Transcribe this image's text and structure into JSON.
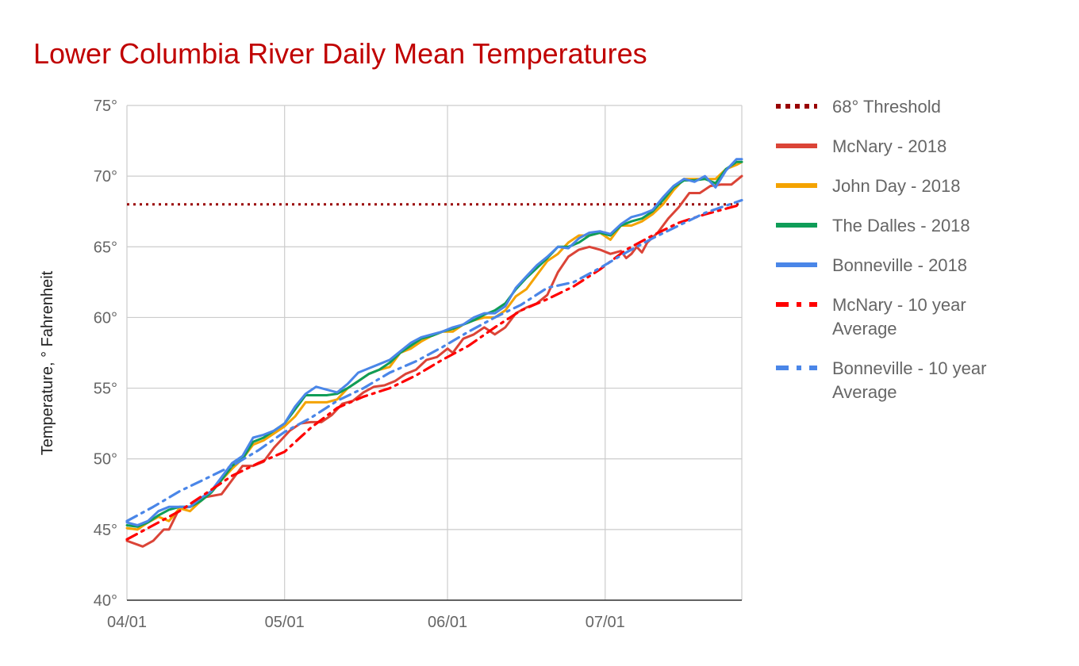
{
  "chart_data": {
    "type": "line",
    "title": "Lower Columbia River Daily Mean Temperatures",
    "title_color": "#c00000",
    "ylabel": "Temperature, ° Fahrenheit",
    "xlabel": "",
    "ylim": [
      40,
      75
    ],
    "xlim": [
      0,
      117
    ],
    "grid": true,
    "legend_position": "right",
    "y_ticks": [
      {
        "value": 40,
        "label": "40°"
      },
      {
        "value": 45,
        "label": "45°"
      },
      {
        "value": 50,
        "label": "50°"
      },
      {
        "value": 55,
        "label": "55°"
      },
      {
        "value": 60,
        "label": "60°"
      },
      {
        "value": 65,
        "label": "65°"
      },
      {
        "value": 70,
        "label": "70°"
      },
      {
        "value": 75,
        "label": "75°"
      }
    ],
    "x_ticks": [
      {
        "value": 0,
        "label": "04/01"
      },
      {
        "value": 30,
        "label": "05/01"
      },
      {
        "value": 61,
        "label": "06/01"
      },
      {
        "value": 91,
        "label": "07/01"
      }
    ],
    "threshold": {
      "name": "68° Threshold",
      "value": 68,
      "color": "#990000"
    },
    "series": [
      {
        "name": "McNary - 2018",
        "color": "#db4437",
        "style": "solid",
        "x": [
          0,
          3,
          5,
          7,
          8,
          10,
          12,
          15,
          18,
          20,
          22,
          24,
          26,
          28,
          31,
          33,
          35,
          37,
          39,
          41,
          43,
          45,
          47,
          49,
          51,
          53,
          55,
          57,
          59,
          61,
          62,
          64,
          66,
          68,
          70,
          72,
          74,
          76,
          78,
          80,
          82,
          84,
          86,
          88,
          90,
          92,
          94,
          95,
          96,
          97,
          98,
          99,
          101,
          103,
          105,
          107,
          109,
          111,
          113,
          115,
          117
        ],
        "values": [
          44.2,
          43.8,
          44.2,
          45.0,
          45.0,
          46.5,
          46.6,
          47.3,
          47.5,
          48.5,
          49.5,
          49.5,
          49.8,
          50.8,
          52.0,
          52.5,
          52.6,
          52.6,
          53.1,
          53.9,
          54.1,
          54.7,
          55.1,
          55.2,
          55.5,
          56.0,
          56.3,
          57.0,
          57.2,
          57.8,
          57.5,
          58.5,
          58.8,
          59.3,
          58.8,
          59.3,
          60.3,
          60.7,
          61.0,
          61.6,
          63.2,
          64.3,
          64.8,
          65.0,
          64.8,
          64.5,
          64.7,
          64.2,
          64.5,
          65.0,
          64.6,
          65.3,
          66.0,
          67.0,
          67.8,
          68.8,
          68.8,
          69.3,
          69.4,
          69.4,
          70.0
        ]
      },
      {
        "name": "John Day - 2018",
        "color": "#f4a300",
        "style": "solid",
        "x": [
          0,
          2,
          4,
          6,
          8,
          10,
          12,
          14,
          16,
          18,
          20,
          22,
          24,
          26,
          28,
          30,
          32,
          34,
          36,
          38,
          40,
          42,
          44,
          46,
          48,
          50,
          52,
          54,
          56,
          58,
          60,
          62,
          64,
          66,
          68,
          70,
          72,
          74,
          76,
          78,
          80,
          82,
          84,
          86,
          88,
          90,
          92,
          94,
          96,
          98,
          100,
          102,
          104,
          106,
          108,
          110,
          112,
          114,
          116,
          117
        ],
        "values": [
          45.1,
          45.0,
          45.5,
          45.9,
          45.6,
          46.5,
          46.3,
          47.0,
          47.6,
          48.5,
          49.3,
          50.0,
          51.0,
          51.3,
          51.8,
          52.3,
          53.0,
          54.0,
          54.0,
          54.0,
          54.2,
          55.0,
          55.5,
          56.0,
          56.3,
          56.5,
          57.5,
          57.8,
          58.3,
          58.7,
          59.0,
          59.0,
          59.5,
          59.8,
          60.0,
          60.0,
          60.5,
          61.5,
          62.0,
          63.0,
          64.0,
          64.5,
          65.3,
          65.8,
          65.8,
          66.0,
          65.5,
          66.5,
          66.5,
          66.8,
          67.3,
          68.0,
          69.0,
          69.8,
          69.8,
          69.8,
          69.8,
          70.5,
          70.8,
          71.0
        ]
      },
      {
        "name": "The Dalles - 2018",
        "color": "#0f9d58",
        "style": "solid",
        "x": [
          0,
          2,
          4,
          6,
          8,
          10,
          12,
          14,
          16,
          18,
          20,
          22,
          24,
          26,
          28,
          30,
          32,
          34,
          36,
          38,
          40,
          42,
          44,
          46,
          48,
          50,
          52,
          54,
          56,
          58,
          60,
          62,
          64,
          66,
          68,
          70,
          72,
          74,
          76,
          78,
          80,
          82,
          84,
          86,
          88,
          90,
          92,
          94,
          96,
          98,
          100,
          102,
          104,
          106,
          108,
          110,
          112,
          114,
          116,
          117
        ],
        "values": [
          45.3,
          45.2,
          45.5,
          46.0,
          46.4,
          46.6,
          46.6,
          47.0,
          47.6,
          48.5,
          49.5,
          50.0,
          51.2,
          51.5,
          52.0,
          52.5,
          53.5,
          54.5,
          54.5,
          54.5,
          54.6,
          55.0,
          55.5,
          56.0,
          56.3,
          56.8,
          57.5,
          58.0,
          58.5,
          58.7,
          59.0,
          59.2,
          59.5,
          59.8,
          60.2,
          60.5,
          61.0,
          62.0,
          62.8,
          63.5,
          64.2,
          65.0,
          65.0,
          65.3,
          65.8,
          66.0,
          65.8,
          66.5,
          66.8,
          67.0,
          67.5,
          68.3,
          69.2,
          69.7,
          69.7,
          69.8,
          69.5,
          70.5,
          71.0,
          71.0
        ]
      },
      {
        "name": "Bonneville - 2018",
        "color": "#4a86e8",
        "style": "solid",
        "x": [
          0,
          2,
          4,
          6,
          8,
          10,
          12,
          14,
          16,
          18,
          20,
          22,
          24,
          26,
          28,
          30,
          32,
          34,
          36,
          38,
          40,
          42,
          44,
          46,
          48,
          50,
          52,
          54,
          56,
          58,
          60,
          62,
          64,
          66,
          68,
          70,
          72,
          74,
          76,
          78,
          80,
          82,
          84,
          86,
          88,
          90,
          92,
          94,
          96,
          98,
          100,
          102,
          104,
          106,
          108,
          110,
          112,
          114,
          116,
          117
        ],
        "values": [
          45.5,
          45.3,
          45.6,
          46.3,
          46.6,
          46.6,
          46.6,
          47.2,
          47.7,
          48.7,
          49.7,
          50.2,
          51.5,
          51.7,
          52.0,
          52.5,
          53.7,
          54.6,
          55.1,
          54.9,
          54.7,
          55.3,
          56.1,
          56.4,
          56.7,
          57.0,
          57.6,
          58.2,
          58.6,
          58.8,
          59.0,
          59.3,
          59.5,
          60.0,
          60.3,
          60.3,
          60.8,
          62.1,
          62.9,
          63.7,
          64.3,
          65.0,
          64.9,
          65.6,
          66.0,
          66.1,
          65.9,
          66.6,
          67.1,
          67.3,
          67.6,
          68.5,
          69.3,
          69.8,
          69.6,
          70.0,
          69.2,
          70.4,
          71.2,
          71.2
        ]
      },
      {
        "name": "McNary - 10 year Average",
        "color": "#ff0000",
        "style": "dashdot",
        "x": [
          0,
          10,
          20,
          25,
          30,
          35,
          40,
          45,
          50,
          55,
          60,
          65,
          70,
          75,
          80,
          85,
          90,
          95,
          100,
          105,
          110,
          117
        ],
        "values": [
          44.3,
          46.3,
          48.8,
          49.7,
          50.5,
          52.2,
          53.6,
          54.4,
          55.0,
          55.9,
          57.0,
          58.0,
          59.3,
          60.5,
          61.3,
          62.2,
          63.4,
          64.8,
          65.8,
          66.7,
          67.3,
          68.0
        ]
      },
      {
        "name": "Bonneville - 10 year Average",
        "color": "#4a86e8",
        "style": "dashdot",
        "x": [
          0,
          5,
          10,
          15,
          20,
          25,
          30,
          35,
          40,
          45,
          50,
          55,
          60,
          65,
          70,
          75,
          80,
          85,
          90,
          95,
          100,
          105,
          110,
          117
        ],
        "values": [
          45.6,
          46.6,
          47.7,
          48.6,
          49.5,
          50.6,
          51.9,
          52.9,
          54.1,
          55.0,
          56.1,
          56.9,
          57.9,
          59.0,
          60.0,
          60.9,
          62.1,
          62.5,
          63.5,
          64.6,
          65.6,
          66.5,
          67.4,
          68.3
        ]
      }
    ],
    "legend": [
      {
        "lines": [
          "68° Threshold"
        ],
        "color": "#990000",
        "style": "dotted"
      },
      {
        "lines": [
          "McNary - 2018"
        ],
        "color": "#db4437",
        "style": "solid"
      },
      {
        "lines": [
          "John Day - 2018"
        ],
        "color": "#f4a300",
        "style": "solid"
      },
      {
        "lines": [
          "The Dalles - 2018"
        ],
        "color": "#0f9d58",
        "style": "solid"
      },
      {
        "lines": [
          "Bonneville - 2018"
        ],
        "color": "#4a86e8",
        "style": "solid"
      },
      {
        "lines": [
          "McNary - 10 year",
          "Average"
        ],
        "color": "#ff0000",
        "style": "dashdot"
      },
      {
        "lines": [
          "Bonneville - 10 year",
          "Average"
        ],
        "color": "#4a86e8",
        "style": "dashdot"
      }
    ]
  }
}
